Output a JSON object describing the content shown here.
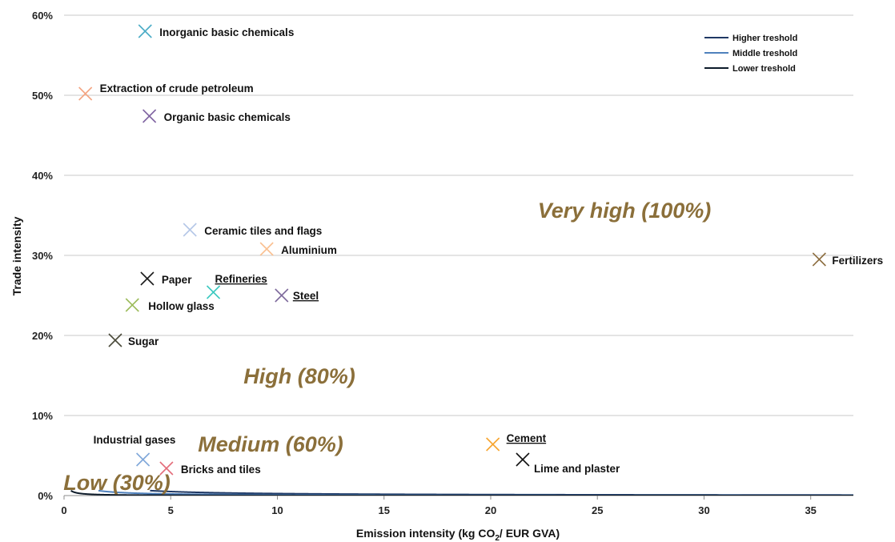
{
  "chart_data": {
    "type": "scatter",
    "xlabel": "Emission intensity (kg CO2/ EUR GVA)",
    "xlabel_parts": {
      "pre": "Emission intensity (kg CO",
      "sub": "2",
      "post": "/ EUR GVA)"
    },
    "ylabel": "Trade intensity",
    "xlim": [
      0,
      37
    ],
    "ylim": [
      0,
      0.6
    ],
    "x_ticks": [
      0,
      5,
      10,
      15,
      20,
      25,
      30,
      35
    ],
    "y_ticks": [
      {
        "value": 0,
        "label": "0%"
      },
      {
        "value": 0.1,
        "label": "10%"
      },
      {
        "value": 0.2,
        "label": "20%"
      },
      {
        "value": 0.3,
        "label": "30%"
      },
      {
        "value": 0.4,
        "label": "40%"
      },
      {
        "value": 0.5,
        "label": "50%"
      },
      {
        "value": 0.6,
        "label": "60%"
      }
    ],
    "grid": "horizontal",
    "legend_position": "top-right",
    "thresholds": [
      {
        "name": "Higher treshold",
        "k": 2.5,
        "color": "#1F3864"
      },
      {
        "name": "Middle treshold",
        "k": 1.0,
        "color": "#4F81BD"
      },
      {
        "name": "Lower treshold",
        "k": 0.2,
        "color": "#0D1B2A"
      }
    ],
    "points": [
      {
        "label": "Inorganic basic chemicals",
        "x": 3.8,
        "y": 0.58,
        "color": "#4BACC6",
        "underline": false
      },
      {
        "label": "Extraction of crude petroleum",
        "x": 1.0,
        "y": 0.502,
        "color": "#F4A582",
        "underline": false
      },
      {
        "label": "Organic basic chemicals",
        "x": 4.0,
        "y": 0.474,
        "color": "#8064A2",
        "underline": false
      },
      {
        "label": "Ceramic tiles and flags",
        "x": 5.9,
        "y": 0.332,
        "color": "#B4C7E7",
        "underline": false
      },
      {
        "label": "Aluminium",
        "x": 9.5,
        "y": 0.308,
        "color": "#FAC090",
        "underline": false
      },
      {
        "label": "Fertilizers",
        "x": 35.4,
        "y": 0.295,
        "color": "#8C6D3F",
        "underline": false
      },
      {
        "label": "Paper",
        "x": 3.9,
        "y": 0.271,
        "color": "#1a1a1a",
        "underline": false
      },
      {
        "label": "Refineries",
        "x": 7.0,
        "y": 0.254,
        "color": "#3CC9C0",
        "underline": true
      },
      {
        "label": "Steel",
        "x": 10.2,
        "y": 0.25,
        "color": "#7E6A9C",
        "underline": true
      },
      {
        "label": "Hollow glass",
        "x": 3.2,
        "y": 0.238,
        "color": "#9BBB59",
        "underline": false
      },
      {
        "label": "Sugar",
        "x": 2.4,
        "y": 0.194,
        "color": "#4A4A3A",
        "underline": false
      },
      {
        "label": "Industrial gases",
        "x": 3.7,
        "y": 0.045,
        "color": "#7FA7D9",
        "underline": false
      },
      {
        "label": "Bricks and tiles",
        "x": 4.8,
        "y": 0.034,
        "color": "#E46C7A",
        "underline": false
      },
      {
        "label": "Cement",
        "x": 20.1,
        "y": 0.064,
        "color": "#F7A530",
        "underline": true
      },
      {
        "label": "Lime and plaster",
        "x": 21.5,
        "y": 0.045,
        "color": "#111111",
        "underline": false
      }
    ],
    "zones": [
      {
        "label": "Very high (100%)"
      },
      {
        "label": "High (80%)"
      },
      {
        "label": "Medium (60%)"
      },
      {
        "label": "Low (30%)"
      }
    ]
  }
}
